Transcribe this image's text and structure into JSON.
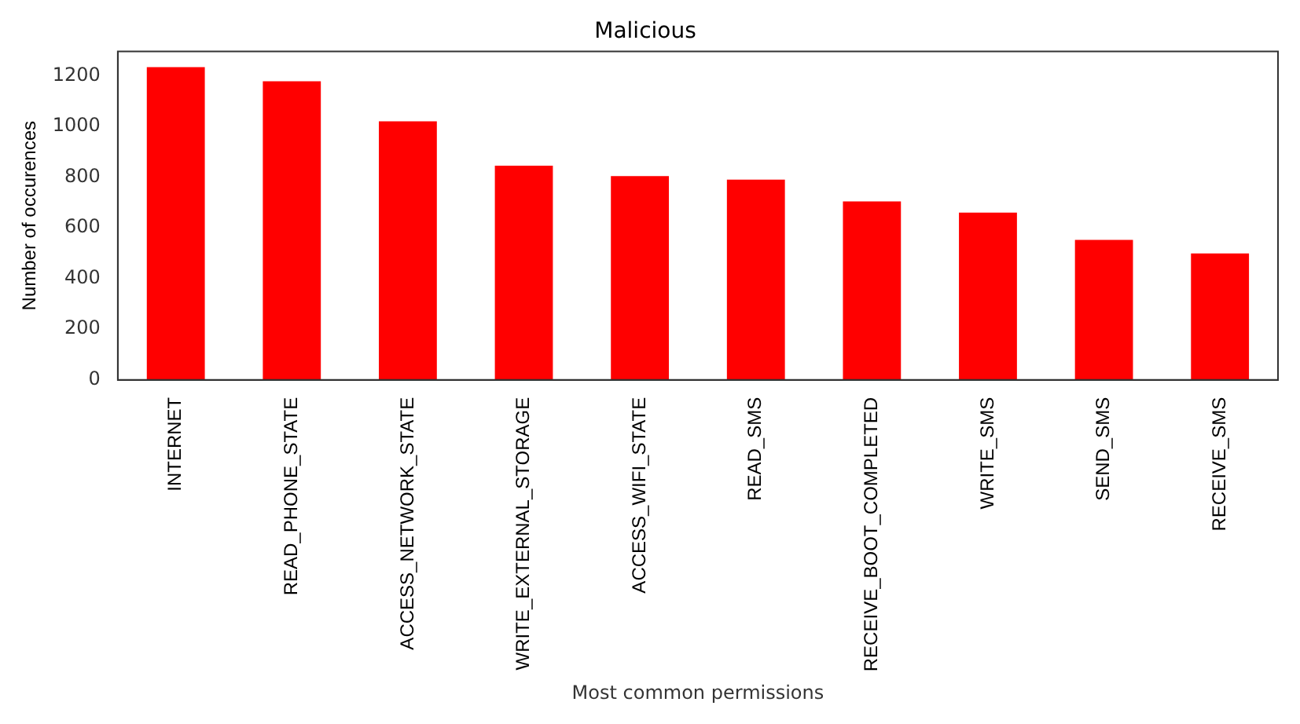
{
  "chart_data": {
    "type": "bar",
    "title": "Malicious",
    "xlabel": "Most common permissions",
    "ylabel": "Number of occurences",
    "categories": [
      "INTERNET",
      "READ_PHONE_STATE",
      "ACCESS_NETWORK_STATE",
      "WRITE_EXTERNAL_STORAGE",
      "ACCESS_WIFI_STATE",
      "READ_SMS",
      "RECEIVE_BOOT_COMPLETED",
      "WRITE_SMS",
      "SEND_SMS",
      "RECEIVE_SMS"
    ],
    "values": [
      1233,
      1178,
      1020,
      845,
      804,
      790,
      704,
      660,
      552,
      499
    ],
    "color": "#ff0000",
    "ylim": [
      0,
      1295
    ],
    "yticks": [
      0,
      200,
      400,
      600,
      800,
      1000,
      1200
    ],
    "grid": false,
    "legend": false
  }
}
